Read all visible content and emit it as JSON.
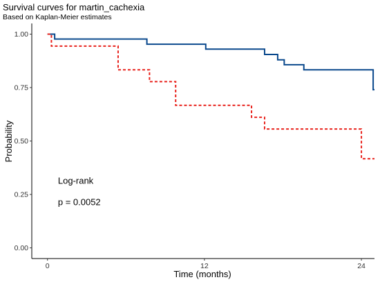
{
  "chart_data": {
    "type": "line",
    "step": true,
    "title": "Survival curves for martin_cachexia",
    "subtitle": "Based on Kaplan-Meier estimates",
    "xlabel": "Time (months)",
    "ylabel": "Probability",
    "xlim": [
      -1.2,
      25
    ],
    "ylim": [
      -0.05,
      1.05
    ],
    "xticks": [
      0,
      12,
      24
    ],
    "yticks": [
      0.0,
      0.25,
      0.5,
      0.75,
      1.0
    ],
    "ytick_labels": [
      "0.00",
      "0.25",
      "0.50",
      "0.75",
      "1.00"
    ],
    "grid": false,
    "legend": "none",
    "series": [
      {
        "color": "#08478c",
        "dash": "solid",
        "x": [
          0,
          0.55,
          7.6,
          12.1,
          16.6,
          17.6,
          18.1,
          19.6,
          24.9,
          25
        ],
        "y": [
          1.0,
          0.977,
          0.953,
          0.93,
          0.905,
          0.88,
          0.857,
          0.833,
          0.74,
          0.74
        ]
      },
      {
        "color": "#e8201a",
        "dash": "dashed",
        "x": [
          0,
          0.3,
          5.4,
          7.8,
          9.8,
          15.6,
          16.6,
          24.0,
          25
        ],
        "y": [
          1.0,
          0.944,
          0.833,
          0.778,
          0.667,
          0.611,
          0.556,
          0.417,
          0.417
        ]
      }
    ],
    "annotations": [
      {
        "text": "Log-rank",
        "x": 0.8,
        "y": 0.3
      },
      {
        "text": "p = 0.0052",
        "x": 0.8,
        "y": 0.2
      }
    ]
  }
}
